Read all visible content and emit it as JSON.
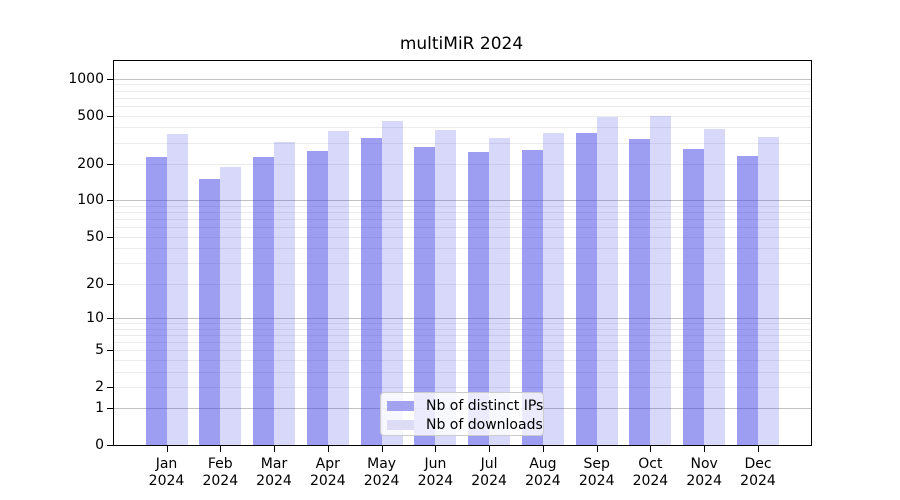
{
  "title": "multiMiR 2024",
  "chart_data": {
    "type": "bar",
    "title": "multiMiR 2024",
    "yscale": "log1p",
    "categories": [
      "Jan 2024",
      "Feb 2024",
      "Mar 2024",
      "Apr 2024",
      "May 2024",
      "Jun 2024",
      "Jul 2024",
      "Aug 2024",
      "Sep 2024",
      "Oct 2024",
      "Nov 2024",
      "Dec 2024"
    ],
    "x_months": [
      "Jan",
      "Feb",
      "Mar",
      "Apr",
      "May",
      "Jun",
      "Jul",
      "Aug",
      "Sep",
      "Oct",
      "Nov",
      "Dec"
    ],
    "x_year": "2024",
    "series": [
      {
        "name": "Nb of distinct IPs",
        "fill_rgba": "rgba(60,60,230,0.5)",
        "swatch_hex": "#a2a2ee",
        "values": [
          230,
          150,
          228,
          258,
          330,
          278,
          253,
          263,
          358,
          320,
          268,
          234
        ]
      },
      {
        "name": "Nb of downloads",
        "fill_rgba": "rgba(60,60,230,0.2)",
        "swatch_hex": "#dcdcf6",
        "values": [
          356,
          190,
          303,
          370,
          455,
          380,
          328,
          362,
          485,
          492,
          388,
          336
        ]
      }
    ],
    "yticks": [
      1000,
      500,
      200,
      100,
      50,
      20,
      10,
      5,
      2,
      1,
      0
    ],
    "ylim": [
      0,
      1400
    ],
    "grid_major": [
      1,
      10,
      100,
      1000
    ],
    "grid_minor_mantissas": [
      2,
      3,
      4,
      5,
      6,
      7,
      8,
      9
    ],
    "legend_position": "lower center inside",
    "xlabel": "",
    "ylabel": ""
  },
  "colors": {
    "bar_dark": "#9e9ef2",
    "bar_light": "#d8d8fa",
    "grid_major": "#c2c2c2",
    "grid_minor": "#ebebeb",
    "axis": "#000000",
    "legend_border": "#cccccc",
    "background": "#ffffff"
  }
}
